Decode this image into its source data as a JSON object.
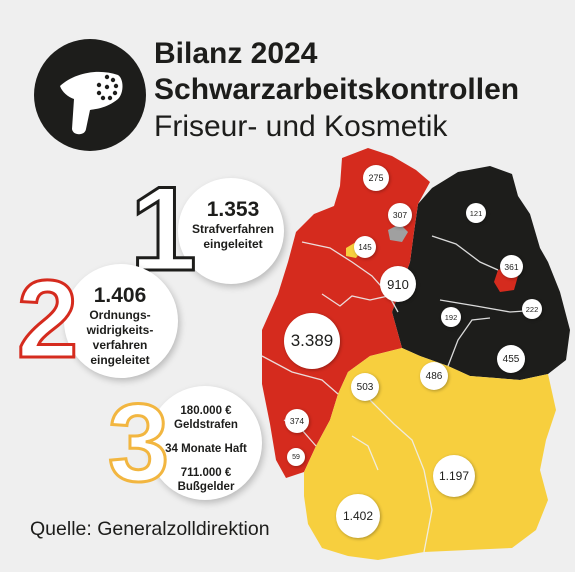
{
  "header": {
    "title_line1": "Bilanz 2024",
    "title_line2": "Schwarzarbeitskontrollen",
    "subtitle": "Friseur- und Kosmetik"
  },
  "stats": [
    {
      "number": "1",
      "value": "1.353",
      "label": [
        "Strafverfahren",
        "eingeleitet"
      ]
    },
    {
      "number": "2",
      "value": "1.406",
      "label": [
        "Ordnungs-",
        "widrigkeits-",
        "verfahren",
        "eingeleitet"
      ]
    },
    {
      "number": "3",
      "lines": [
        "180.000 €",
        "Geldstrafen",
        "34 Monate Haft",
        "711.000 €",
        "Bußgelder"
      ]
    }
  ],
  "map_regions": [
    {
      "region": "north",
      "value": "275",
      "color": "red"
    },
    {
      "region": "hamburg",
      "value": "307",
      "color": "red"
    },
    {
      "region": "bremen",
      "value": "145",
      "color": "red"
    },
    {
      "region": "northwest",
      "value": "910",
      "color": "red"
    },
    {
      "region": "west",
      "value": "3.389",
      "color": "red"
    },
    {
      "region": "southwest",
      "value": "374",
      "color": "red"
    },
    {
      "region": "saar",
      "value": "59",
      "color": "red"
    },
    {
      "region": "northeast",
      "value": "121",
      "color": "black"
    },
    {
      "region": "berlin",
      "value": "361",
      "color": "red"
    },
    {
      "region": "east",
      "value": "222",
      "color": "black"
    },
    {
      "region": "center",
      "value": "192",
      "color": "black"
    },
    {
      "region": "saxony",
      "value": "455",
      "color": "black"
    },
    {
      "region": "thuringia",
      "value": "486",
      "color": "black"
    },
    {
      "region": "hesse",
      "value": "503",
      "color": "yellow"
    },
    {
      "region": "bavaria",
      "value": "1.197",
      "color": "yellow"
    },
    {
      "region": "bw",
      "value": "1.402",
      "color": "yellow"
    }
  ],
  "colors": {
    "red": "#d52b1e",
    "black": "#1d1d1b",
    "yellow": "#f7cf3e",
    "number3": "#f2b640",
    "background": "#efefef"
  },
  "source": "Quelle: Generalzolldirektion"
}
